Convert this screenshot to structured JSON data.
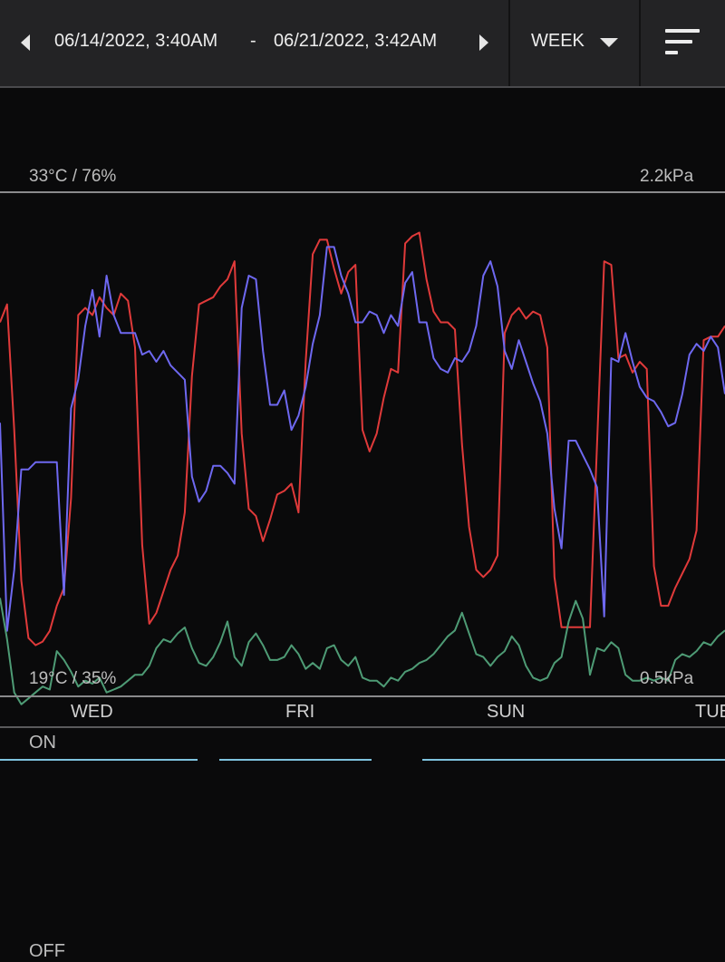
{
  "header": {
    "start_date": "06/14/2022, 3:40AM",
    "separator": "-",
    "end_date": "06/21/2022, 3:42AM",
    "period": "WEEK",
    "icons": {
      "prev": "prev-arrow-icon",
      "next": "next-arrow-icon",
      "caret": "chevron-down-icon",
      "menu": "sort-menu-icon"
    }
  },
  "chart_data": {
    "type": "line",
    "top_left_label": "33°C / 76%",
    "top_right_label": "2.2kPa",
    "bottom_left_label": "19°C / 35%",
    "bottom_right_label": "0.5kPa",
    "ylim_left_temp": [
      19,
      33
    ],
    "ylim_left_humidity": [
      35,
      76
    ],
    "ylim_right_vpd": [
      0.5,
      2.2
    ],
    "x_labels": [
      "WED",
      "FRI",
      "SUN",
      "TUE"
    ],
    "series": [
      {
        "color": "#e03a3a",
        "values": [
          29.4,
          29.9,
          26.4,
          22.2,
          20.6,
          20.4,
          20.5,
          20.8,
          21.5,
          22.0,
          24.5,
          29.6,
          29.8,
          29.6,
          30.1,
          29.8,
          29.6,
          30.2,
          30.0,
          28.7,
          23.2,
          21.0,
          21.3,
          21.9,
          22.5,
          22.9,
          24.1,
          27.9,
          29.9,
          30.0,
          30.1,
          30.4,
          30.6,
          31.1,
          26.3,
          24.2,
          24.0,
          23.3,
          23.9,
          24.6,
          24.7,
          24.9,
          24.1,
          28.3,
          31.3,
          31.7,
          31.7,
          30.9,
          30.2,
          30.8,
          31.0,
          26.4,
          25.8,
          26.3,
          27.3,
          28.1,
          28.0,
          31.6,
          31.8,
          31.9,
          30.6,
          29.7,
          29.4,
          29.4,
          29.2,
          26.0,
          23.7,
          22.5,
          22.3,
          22.5,
          22.9,
          29.1,
          29.6,
          29.8,
          29.5,
          29.7,
          29.6,
          28.7,
          22.3,
          20.9,
          20.9,
          20.9,
          20.9,
          20.9,
          26.0,
          31.1,
          31.0,
          28.4,
          28.5,
          28.0,
          28.3,
          28.1,
          22.6,
          21.5,
          21.5,
          22.0,
          22.4,
          22.8,
          23.6,
          28.9,
          29.0,
          29.0,
          29.3
        ]
      },
      {
        "color": "#6e68f0",
        "values": [
          26.6,
          20.8,
          22.5,
          25.3,
          25.3,
          25.5,
          25.5,
          25.5,
          25.5,
          21.8,
          27.0,
          27.8,
          29.3,
          30.3,
          29.0,
          30.7,
          29.6,
          29.1,
          29.1,
          29.1,
          28.5,
          28.6,
          28.3,
          28.6,
          28.2,
          28.0,
          27.8,
          25.1,
          24.4,
          24.7,
          25.4,
          25.4,
          25.2,
          24.9,
          29.8,
          30.7,
          30.6,
          28.6,
          27.1,
          27.1,
          27.5,
          26.4,
          26.8,
          27.6,
          28.8,
          29.6,
          31.5,
          31.5,
          30.7,
          30.2,
          29.4,
          29.4,
          29.7,
          29.6,
          29.1,
          29.6,
          29.3,
          30.5,
          30.8,
          29.4,
          29.4,
          28.4,
          28.1,
          28.0,
          28.4,
          28.3,
          28.6,
          29.3,
          30.7,
          31.1,
          30.4,
          28.6,
          28.1,
          28.9,
          28.3,
          27.7,
          27.2,
          26.3,
          24.2,
          23.1,
          26.1,
          26.1,
          25.7,
          25.3,
          24.8,
          21.2,
          28.4,
          28.3,
          29.1,
          28.3,
          27.6,
          27.3,
          27.2,
          26.9,
          26.5,
          26.6,
          27.4,
          28.5,
          28.8,
          28.6,
          29.0,
          28.7,
          27.4
        ]
      },
      {
        "color": "#4e9b75",
        "values": [
          0.83,
          0.69,
          0.51,
          0.47,
          0.49,
          0.51,
          0.53,
          0.52,
          0.65,
          0.62,
          0.58,
          0.53,
          0.55,
          0.54,
          0.56,
          0.51,
          0.52,
          0.53,
          0.55,
          0.57,
          0.57,
          0.6,
          0.66,
          0.69,
          0.68,
          0.71,
          0.73,
          0.66,
          0.61,
          0.6,
          0.63,
          0.68,
          0.75,
          0.63,
          0.6,
          0.68,
          0.71,
          0.67,
          0.62,
          0.62,
          0.63,
          0.67,
          0.64,
          0.59,
          0.61,
          0.59,
          0.66,
          0.67,
          0.62,
          0.6,
          0.63,
          0.56,
          0.55,
          0.55,
          0.53,
          0.56,
          0.55,
          0.58,
          0.59,
          0.61,
          0.62,
          0.64,
          0.67,
          0.7,
          0.72,
          0.78,
          0.71,
          0.64,
          0.63,
          0.6,
          0.63,
          0.65,
          0.7,
          0.67,
          0.6,
          0.56,
          0.55,
          0.56,
          0.61,
          0.63,
          0.75,
          0.82,
          0.76,
          0.57,
          0.66,
          0.65,
          0.68,
          0.66,
          0.57,
          0.55,
          0.55,
          0.56,
          0.55,
          0.56,
          0.55,
          0.62,
          0.64,
          0.63,
          0.65,
          0.68,
          0.67,
          0.7,
          0.72
        ]
      }
    ],
    "gap_color": "#6a6a6a"
  },
  "day_labels": [
    "WED",
    "FRI",
    "SUN",
    "TUE"
  ],
  "state": {
    "on_label": "ON",
    "off_label": "OFF",
    "line_color": "#7fc3de"
  }
}
